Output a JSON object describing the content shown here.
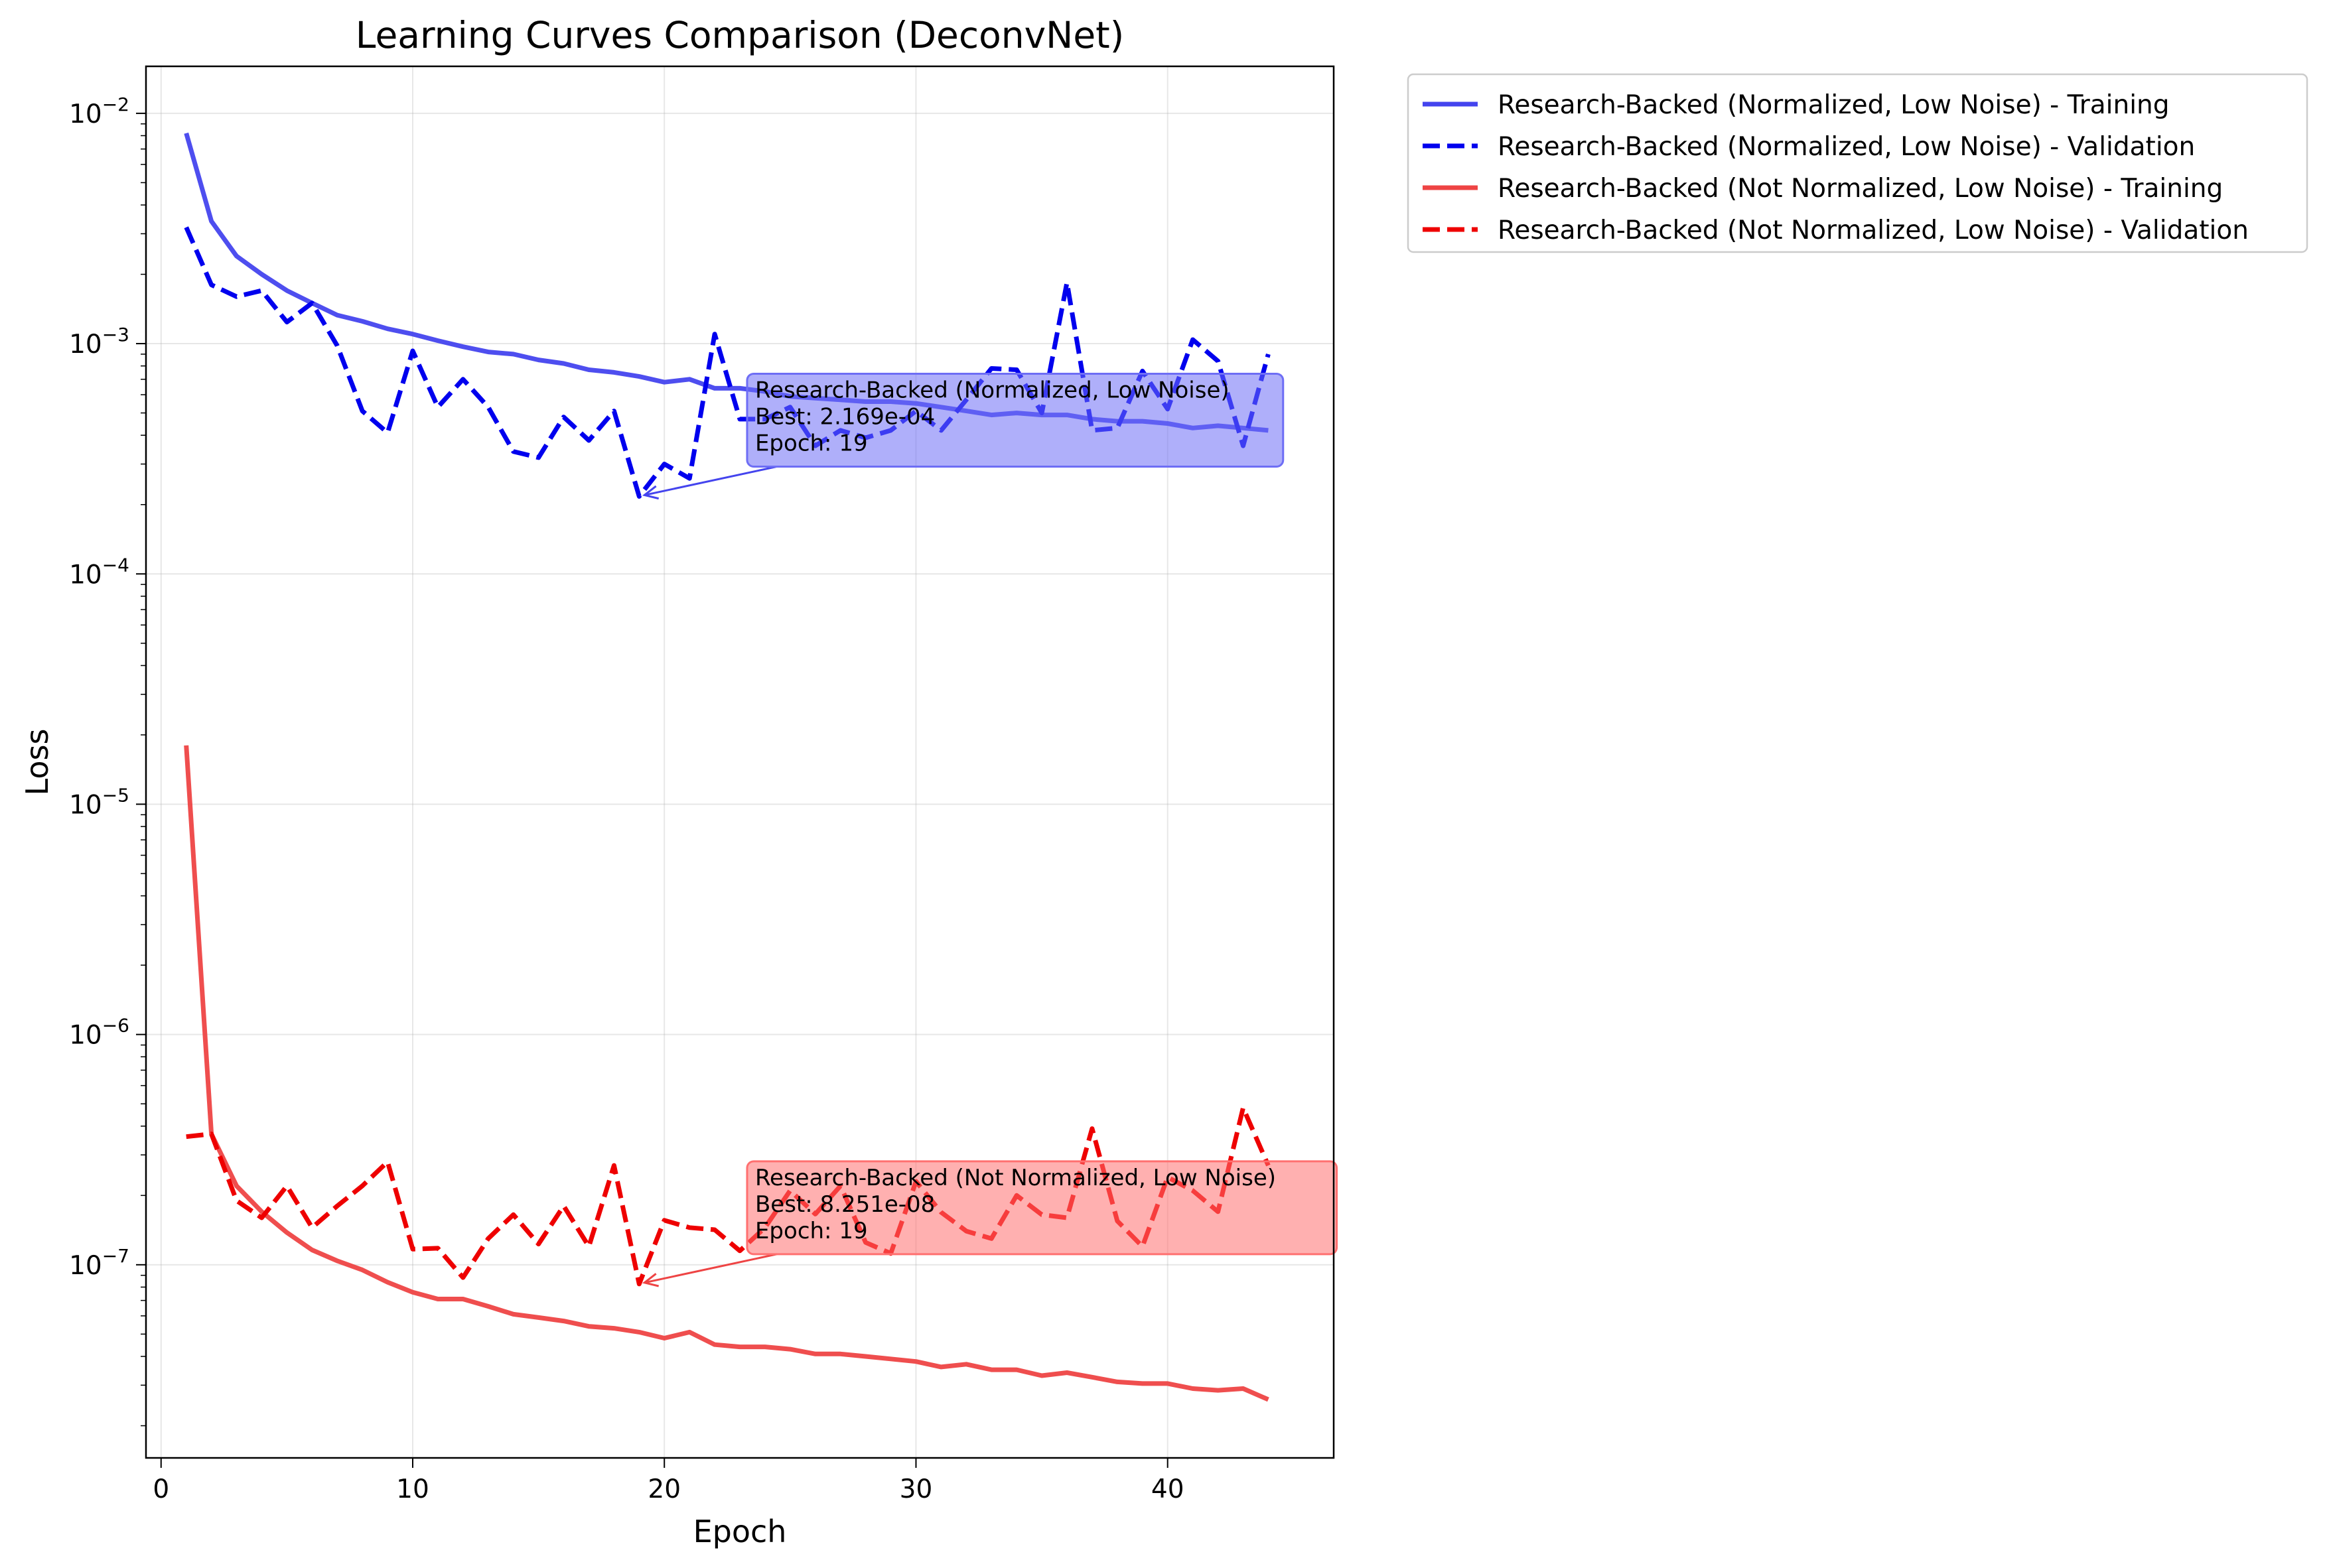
{
  "chart_data": {
    "type": "line",
    "title": "Learning Curves Comparison (DeconvNet)",
    "xlabel": "Epoch",
    "ylabel": "Loss",
    "yscale": "log",
    "xlim": [
      -0.6,
      46.6
    ],
    "ylim": [
      1.45e-08,
      0.016
    ],
    "grid": true,
    "legend_position": "outside-top-right",
    "x_ticks": [
      0,
      10,
      20,
      30,
      40
    ],
    "y_ticks": [
      {
        "value": 1e-07,
        "base": "10",
        "exp": "−7"
      },
      {
        "value": 1e-06,
        "base": "10",
        "exp": "−6"
      },
      {
        "value": 1e-05,
        "base": "10",
        "exp": "−5"
      },
      {
        "value": 0.0001,
        "base": "10",
        "exp": "−4"
      },
      {
        "value": 0.001,
        "base": "10",
        "exp": "−3"
      },
      {
        "value": 0.01,
        "base": "10",
        "exp": "−2"
      }
    ],
    "series": [
      {
        "name": "Research-Backed (Normalized, Low Noise) - Training",
        "color": "#4444ee",
        "style": "solid",
        "x": [
          1,
          2,
          3,
          4,
          5,
          6,
          7,
          8,
          9,
          10,
          11,
          12,
          13,
          14,
          15,
          16,
          17,
          18,
          19,
          20,
          21,
          22,
          23,
          24,
          25,
          26,
          27,
          28,
          29,
          30,
          31,
          32,
          33,
          34,
          35,
          36,
          37,
          38,
          39,
          40,
          41,
          42,
          43,
          44
        ],
        "values": [
          0.0082,
          0.0034,
          0.0024,
          0.002,
          0.0017,
          0.0015,
          0.00133,
          0.00125,
          0.00116,
          0.0011,
          0.00103,
          0.00097,
          0.00092,
          0.0009,
          0.00085,
          0.00082,
          0.00077,
          0.00075,
          0.00072,
          0.00068,
          0.0007,
          0.00064,
          0.00064,
          0.00062,
          0.00059,
          0.00058,
          0.00057,
          0.00056,
          0.00056,
          0.00055,
          0.00053,
          0.00051,
          0.00049,
          0.0005,
          0.00049,
          0.00049,
          0.00047,
          0.00046,
          0.00046,
          0.00045,
          0.00043,
          0.00044,
          0.00043,
          0.00042
        ]
      },
      {
        "name": "Research-Backed (Normalized, Low Noise) - Validation",
        "color": "#0000ee",
        "style": "dashed",
        "x": [
          1,
          2,
          3,
          4,
          5,
          6,
          7,
          8,
          9,
          10,
          11,
          12,
          13,
          14,
          15,
          16,
          17,
          18,
          19,
          20,
          21,
          22,
          23,
          24,
          25,
          26,
          27,
          28,
          29,
          30,
          31,
          32,
          33,
          34,
          35,
          36,
          37,
          38,
          39,
          40,
          41,
          42,
          43,
          44
        ],
        "values": [
          0.0032,
          0.0018,
          0.0016,
          0.0017,
          0.00124,
          0.0015,
          0.00098,
          0.00051,
          0.00041,
          0.00093,
          0.00053,
          0.0007,
          0.00053,
          0.00034,
          0.00032,
          0.00048,
          0.00038,
          0.00051,
          0.000217,
          0.0003,
          0.00026,
          0.0011,
          0.00047,
          0.00047,
          0.00053,
          0.00036,
          0.00042,
          0.00039,
          0.00042,
          0.00051,
          0.00042,
          0.00057,
          0.00078,
          0.00077,
          0.0005,
          0.00184,
          0.00042,
          0.00043,
          0.00076,
          0.00052,
          0.00104,
          0.00084,
          0.00036,
          0.0009
        ]
      },
      {
        "name": "Research-Backed (Not Normalized, Low Noise) - Training",
        "color": "#ee4444",
        "style": "solid",
        "x": [
          1,
          2,
          3,
          4,
          5,
          6,
          7,
          8,
          9,
          10,
          11,
          12,
          13,
          14,
          15,
          16,
          17,
          18,
          19,
          20,
          21,
          22,
          23,
          24,
          25,
          26,
          27,
          28,
          29,
          30,
          31,
          32,
          33,
          34,
          35,
          36,
          37,
          38,
          39,
          40,
          41,
          42,
          43,
          44
        ],
        "values": [
          1.8e-05,
          3.7e-07,
          2.2e-07,
          1.7e-07,
          1.38e-07,
          1.16e-07,
          1.04e-07,
          9.5e-08,
          8.4e-08,
          7.6e-08,
          7.1e-08,
          7.1e-08,
          6.6e-08,
          6.1e-08,
          5.9e-08,
          5.7e-08,
          5.4e-08,
          5.3e-08,
          5.1e-08,
          4.8e-08,
          5.1e-08,
          4.5e-08,
          4.4e-08,
          4.4e-08,
          4.3e-08,
          4.1e-08,
          4.1e-08,
          4e-08,
          3.9e-08,
          3.8e-08,
          3.6e-08,
          3.7e-08,
          3.5e-08,
          3.5e-08,
          3.3e-08,
          3.4e-08,
          3.25e-08,
          3.1e-08,
          3.05e-08,
          3.05e-08,
          2.9e-08,
          2.85e-08,
          2.9e-08,
          2.6e-08
        ]
      },
      {
        "name": "Research-Backed (Not Normalized, Low Noise) - Validation",
        "color": "#ee0000",
        "style": "dashed",
        "x": [
          1,
          2,
          3,
          4,
          5,
          6,
          7,
          8,
          9,
          10,
          11,
          12,
          13,
          14,
          15,
          16,
          17,
          18,
          19,
          20,
          21,
          22,
          23,
          24,
          25,
          26,
          27,
          28,
          29,
          30,
          31,
          32,
          33,
          34,
          35,
          36,
          37,
          38,
          39,
          40,
          41,
          42,
          43,
          44
        ],
        "values": [
          3.6e-07,
          3.7e-07,
          1.9e-07,
          1.6e-07,
          2.2e-07,
          1.45e-07,
          1.8e-07,
          2.2e-07,
          2.8e-07,
          1.17e-07,
          1.18e-07,
          8.8e-08,
          1.3e-07,
          1.65e-07,
          1.23e-07,
          1.8e-07,
          1.2e-07,
          2.7e-07,
          8.25e-08,
          1.56e-07,
          1.45e-07,
          1.42e-07,
          1.15e-07,
          1.45e-07,
          2.1e-07,
          1.66e-07,
          2.2e-07,
          1.25e-07,
          1.12e-07,
          2.3e-07,
          1.69e-07,
          1.4e-07,
          1.3e-07,
          2e-07,
          1.65e-07,
          1.6e-07,
          3.9e-07,
          1.55e-07,
          1.2e-07,
          2.4e-07,
          2.1e-07,
          1.7e-07,
          4.8e-07,
          2.7e-07
        ]
      }
    ],
    "annotations": [
      {
        "series_index": 1,
        "lines": [
          "Research-Backed (Normalized, Low Noise)",
          "Best: 2.169e-04",
          "Epoch: 19"
        ],
        "point_x": 19,
        "point_y": 0.000217,
        "box_color": "#6e6ef5",
        "arrow_color": "#4444ee"
      },
      {
        "series_index": 3,
        "lines": [
          "Research-Backed (Not Normalized, Low Noise)",
          "Best: 8.251e-08",
          "Epoch: 19"
        ],
        "point_x": 19,
        "point_y": 8.251e-08,
        "box_color": "#ff7070",
        "arrow_color": "#ee4444"
      }
    ]
  }
}
